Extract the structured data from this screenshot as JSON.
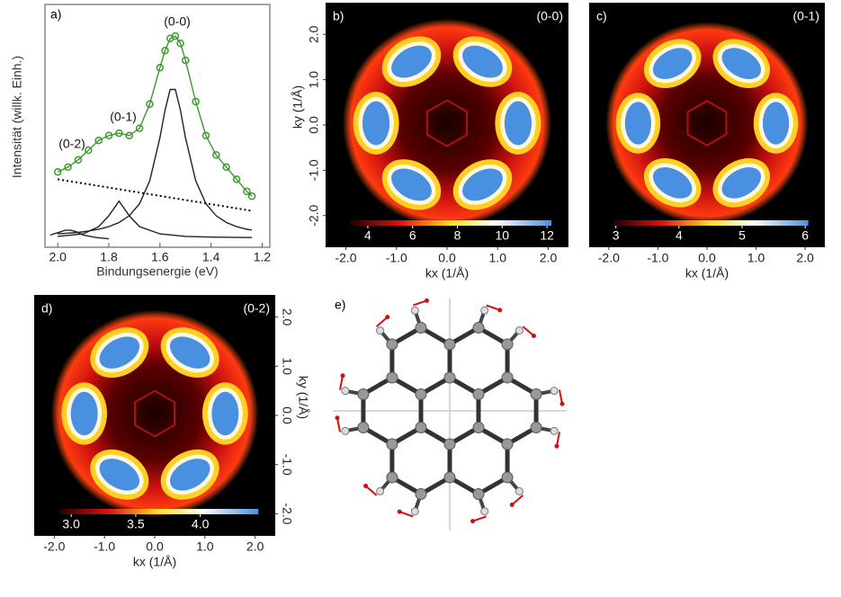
{
  "chart_data": [
    {
      "type": "line",
      "label": "a)",
      "x_label": "Bindungsenergie (eV)",
      "y_label": "Intensität (willk. Einh.)",
      "xlim": [
        2.05,
        1.17
      ],
      "ylim": [
        0,
        1
      ],
      "xticks": [
        {
          "value": 2,
          "label": "2.0"
        },
        {
          "value": 1.8,
          "label": "1.8"
        },
        {
          "value": 1.6,
          "label": "1.6"
        },
        {
          "value": 1.4,
          "label": "1.4"
        },
        {
          "value": 1.2,
          "label": "1.2"
        }
      ],
      "annotations": [
        "(0-0)",
        "(0-1)",
        "(0-2)"
      ],
      "series": [
        {
          "style": "markers",
          "color": "#3a9a2a",
          "x": [
            2.0,
            1.96,
            1.92,
            1.88,
            1.84,
            1.8,
            1.76,
            1.72,
            1.68,
            1.64,
            1.6,
            1.58,
            1.56,
            1.54,
            1.52,
            1.5,
            1.46,
            1.42,
            1.38,
            1.34,
            1.3,
            1.26,
            1.24
          ],
          "values": [
            0.31,
            0.33,
            0.36,
            0.4,
            0.44,
            0.46,
            0.47,
            0.46,
            0.49,
            0.59,
            0.74,
            0.81,
            0.86,
            0.87,
            0.84,
            0.77,
            0.6,
            0.46,
            0.38,
            0.33,
            0.28,
            0.23,
            0.21
          ]
        },
        {
          "style": "line",
          "color": "#3a9a2a",
          "x": [
            2.0,
            1.96,
            1.92,
            1.88,
            1.84,
            1.8,
            1.76,
            1.72,
            1.68,
            1.64,
            1.6,
            1.58,
            1.56,
            1.54,
            1.52,
            1.5,
            1.46,
            1.42,
            1.38,
            1.34,
            1.3,
            1.26,
            1.24
          ],
          "values": [
            0.31,
            0.33,
            0.36,
            0.4,
            0.44,
            0.46,
            0.47,
            0.46,
            0.49,
            0.59,
            0.74,
            0.81,
            0.86,
            0.87,
            0.84,
            0.77,
            0.6,
            0.46,
            0.38,
            0.33,
            0.28,
            0.23,
            0.21
          ]
        },
        {
          "style": "dotted",
          "color": "#000000",
          "x": [
            2.0,
            1.24
          ],
          "values": [
            0.28,
            0.15
          ]
        },
        {
          "style": "line",
          "color": "#222222",
          "x": [
            2.0,
            1.96,
            1.92,
            1.88,
            1.84,
            1.8,
            1.76,
            1.72,
            1.68,
            1.64,
            1.6,
            1.58,
            1.56,
            1.54,
            1.52,
            1.5,
            1.46,
            1.42,
            1.38,
            1.34,
            1.3,
            1.26,
            1.24
          ],
          "values": [
            0.055,
            0.058,
            0.061,
            0.067,
            0.074,
            0.085,
            0.102,
            0.13,
            0.179,
            0.274,
            0.451,
            0.565,
            0.65,
            0.65,
            0.565,
            0.451,
            0.274,
            0.179,
            0.13,
            0.102,
            0.085,
            0.074,
            0.071
          ]
        },
        {
          "style": "line",
          "color": "#222222",
          "x": [
            2.0,
            1.9,
            1.84,
            1.8,
            1.76,
            1.72,
            1.68,
            1.6,
            1.5,
            1.4,
            1.24
          ],
          "values": [
            0.045,
            0.055,
            0.085,
            0.13,
            0.19,
            0.13,
            0.085,
            0.055,
            0.045,
            0.042,
            0.04
          ]
        },
        {
          "style": "line",
          "color": "#222222",
          "x": [
            2.03,
            2.0,
            1.97,
            1.95,
            1.93,
            1.9,
            1.85,
            1.8
          ],
          "values": [
            0.05,
            0.06,
            0.07,
            0.07,
            0.065,
            0.05,
            0.04,
            0.035
          ]
        }
      ]
    },
    {
      "type": "heatmap",
      "label": "b)",
      "title": "(0-0)",
      "x_label": "kx (1/Å)",
      "y_label": "ky (1/Å)",
      "yaxis_side": "left",
      "xlim": [
        -2.4,
        2.4
      ],
      "ylim": [
        -2.7,
        2.7
      ],
      "xticks": [
        {
          "value": -2,
          "label": "-2.0"
        },
        {
          "value": -1,
          "label": "-1.0"
        },
        {
          "value": 0,
          "label": "0.0"
        },
        {
          "value": 1,
          "label": "1.0"
        },
        {
          "value": 2,
          "label": "2.0"
        }
      ],
      "yticks": [
        {
          "value": 2,
          "label": "2.0"
        },
        {
          "value": 1,
          "label": "1.0"
        },
        {
          "value": 0,
          "label": "0.0"
        },
        {
          "value": -1,
          "label": "-1.0"
        },
        {
          "value": -2,
          "label": "-2.0"
        }
      ],
      "clim": [
        3.2,
        12.2
      ],
      "cticks": [
        4,
        6,
        8,
        10,
        12
      ]
    },
    {
      "type": "heatmap",
      "label": "c)",
      "title": "(0-1)",
      "x_label": "kx (1/Å)",
      "xlim": [
        -2.4,
        2.4
      ],
      "ylim": [
        -2.7,
        2.7
      ],
      "xticks": [
        {
          "value": -2,
          "label": "-2.0"
        },
        {
          "value": -1,
          "label": "-1.0"
        },
        {
          "value": 0,
          "label": "0.0"
        },
        {
          "value": 1,
          "label": "1.0"
        },
        {
          "value": 2,
          "label": "2.0"
        }
      ],
      "clim": [
        2.95,
        6.05
      ],
      "cticks": [
        3,
        4,
        5,
        6
      ]
    },
    {
      "type": "heatmap",
      "label": "d)",
      "title": "(0-2)",
      "x_label": "kx (1/Å)",
      "y_label": "ky (1/Å)",
      "yaxis_side": "right",
      "xlim": [
        -2.4,
        2.4
      ],
      "ylim": [
        -2.45,
        2.45
      ],
      "xticks": [
        {
          "value": -2,
          "label": "-2.0"
        },
        {
          "value": -1,
          "label": "-1.0"
        },
        {
          "value": 0,
          "label": "0.0"
        },
        {
          "value": 1,
          "label": "1.0"
        },
        {
          "value": 2,
          "label": "2.0"
        }
      ],
      "yticks": [
        {
          "value": 2,
          "label": "2.0"
        },
        {
          "value": 1,
          "label": "1.0"
        },
        {
          "value": 0,
          "label": "0.0"
        },
        {
          "value": -1,
          "label": "-1.0"
        },
        {
          "value": -2,
          "label": "-2.0"
        }
      ],
      "clim": [
        2.9,
        4.45
      ],
      "cticks": [
        {
          "value": 3,
          "label": "3.0"
        },
        {
          "value": 3.5,
          "label": "3.5"
        },
        {
          "value": 4,
          "label": "4.0"
        }
      ]
    }
  ],
  "diagram": {
    "label": "e)"
  }
}
